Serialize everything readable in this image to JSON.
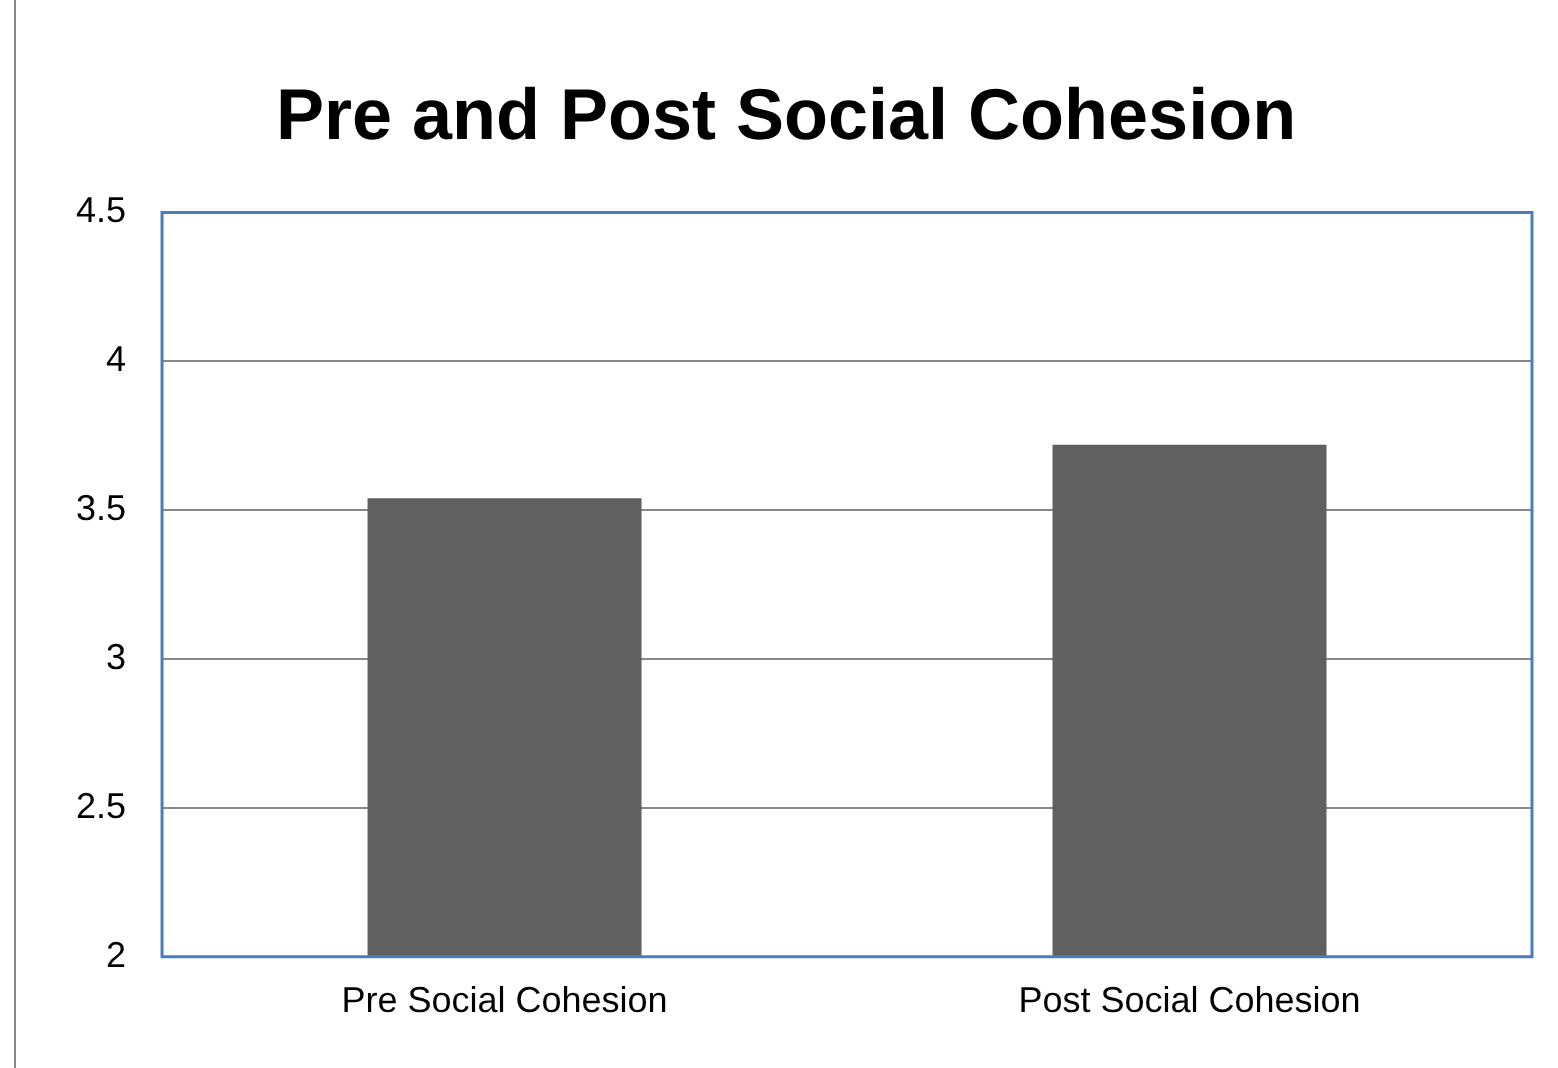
{
  "chart_data": {
    "type": "bar",
    "title": "Pre and Post Social Cohesion",
    "categories": [
      "Pre Social Cohesion",
      "Post Social Cohesion"
    ],
    "values": [
      3.54,
      3.72
    ],
    "color": "#606060",
    "ylim": [
      2,
      4.5
    ],
    "yticks": [
      2,
      2.5,
      3,
      3.5,
      4,
      4.5
    ],
    "grid": "y",
    "legend": false
  }
}
